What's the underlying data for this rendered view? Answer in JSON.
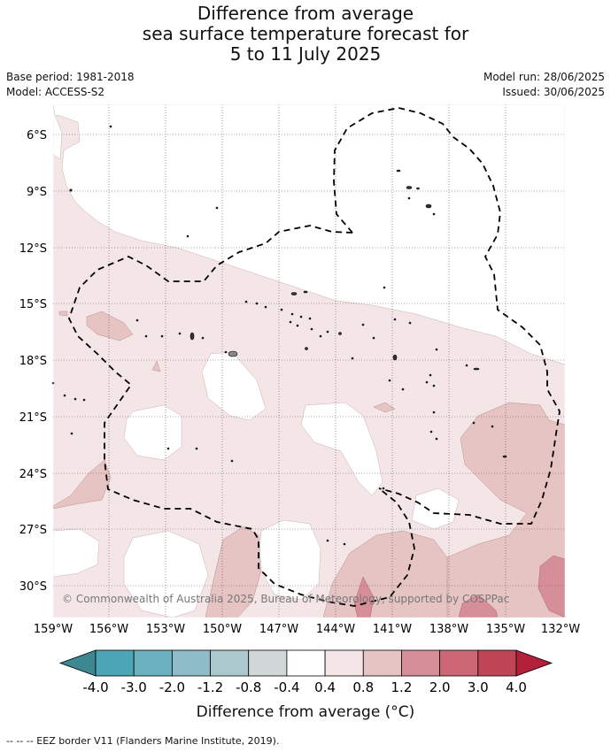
{
  "title": {
    "line1": "Difference from average",
    "line2": "sea surface temperature forecast for",
    "line3": "5 to 11 July 2025"
  },
  "meta": {
    "base_period": "Base period: 1981-2018",
    "model": "Model: ACCESS-S2",
    "model_run": "Model run: 28/06/2025",
    "issued": "Issued: 30/06/2025"
  },
  "map": {
    "lon_ticks": [
      "159°W",
      "156°W",
      "153°W",
      "150°W",
      "147°W",
      "144°W",
      "141°W",
      "138°W",
      "135°W",
      "132°W"
    ],
    "lat_ticks": [
      "6°S",
      "9°S",
      "12°S",
      "15°S",
      "18°S",
      "21°S",
      "24°S",
      "27°S",
      "30°S"
    ],
    "copyright": "© Commonwealth of Australia 2025, Bureau of Meteorology, supported by COSPPac",
    "colors": {
      "c_neg04_0": "#ffffff",
      "c_0_04": "#ffffff",
      "c_04_08": "#f4e6e6",
      "c_08_12": "#e7c4c4",
      "c_12_20": "#d68f98",
      "c_20_30": "#cc6875",
      "c_30_40": "#c04657"
    }
  },
  "colorbar": {
    "title": "Difference from average (°C)",
    "labels": [
      "-4.0",
      "-3.0",
      "-2.0",
      "-1.2",
      "-0.8",
      "-0.4",
      "0.4",
      "0.8",
      "1.2",
      "2.0",
      "3.0",
      "4.0"
    ],
    "colors": [
      "#3d8890",
      "#4aa5b6",
      "#6bb1c0",
      "#8fbdc7",
      "#abc9cc",
      "#d2d7d8",
      "#ffffff",
      "#f4e6e6",
      "#e7c4c4",
      "#d68f98",
      "#cc6875",
      "#c04657",
      "#b3203a"
    ]
  },
  "footnote": "--  --  -- EEZ border V11 (Flanders Marine Institute, 2019)."
}
